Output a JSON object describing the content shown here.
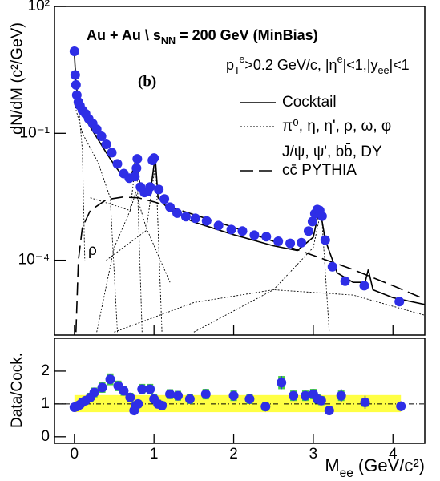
{
  "chart_data": [
    {
      "type": "scatter",
      "title_parts": [
        {
          "text": "Au + Au  \\ s"
        },
        {
          "text": "NN",
          "shift": "sub"
        },
        {
          "text": " = 200 GeV (MinBias)"
        }
      ],
      "subtitle_parts": [
        {
          "text": "p"
        },
        {
          "text": "T",
          "shift": "sub"
        },
        {
          "text": "e",
          "shift": "sup"
        },
        {
          "text": ">0.2 GeV/c, |η"
        },
        {
          "text": "e",
          "shift": "sup"
        },
        {
          "text": "|<1,|y"
        },
        {
          "text": "ee",
          "shift": "sub"
        },
        {
          "text": "|<1"
        }
      ],
      "ylabel": "dN/dM (c²/GeV)",
      "annotations": [
        "(b)",
        "ρ"
      ],
      "log_y": true,
      "xlim": [
        -0.25,
        4.4
      ],
      "ylim": [
        1.7e-06,
        100
      ],
      "yticks": [
        {
          "value": 100,
          "label": "10²"
        },
        {
          "value": 0.1,
          "label": "10⁻¹"
        },
        {
          "value": 0.0001,
          "label": "10⁻⁴"
        }
      ],
      "data": {
        "color": "#2e2ee6",
        "x": [
          0,
          0.01,
          0.02,
          0.03,
          0.05,
          0.07,
          0.1,
          0.14,
          0.18,
          0.23,
          0.28,
          0.34,
          0.4,
          0.47,
          0.54,
          0.62,
          0.69,
          0.76,
          0.78,
          0.79,
          0.83,
          0.88,
          0.92,
          0.95,
          0.98,
          1.0,
          1.06,
          1.13,
          1.2,
          1.29,
          1.4,
          1.52,
          1.66,
          1.81,
          1.97,
          2.11,
          2.26,
          2.41,
          2.56,
          2.71,
          2.85,
          2.94,
          2.99,
          3.02,
          3.05,
          3.08,
          3.11,
          3.15,
          3.24,
          3.4,
          3.64,
          4.08
        ],
        "values": [
          8.7,
          2.4,
          1.4,
          0.8,
          0.55,
          0.45,
          0.35,
          0.29,
          0.22,
          0.17,
          0.125,
          0.085,
          0.055,
          0.035,
          0.019,
          0.0112,
          0.0087,
          0.0095,
          0.015,
          0.025,
          0.0054,
          0.004,
          0.0042,
          0.0054,
          0.023,
          0.026,
          0.0047,
          0.0028,
          0.0018,
          0.0013,
          0.00107,
          0.00098,
          0.00085,
          0.00066,
          0.00053,
          0.00049,
          0.00039,
          0.00036,
          0.00028,
          0.00025,
          0.00026,
          0.00049,
          0.00082,
          0.00126,
          0.00158,
          0.0015,
          0.0011,
          0.0003,
          7e-05,
          3.2e-05,
          2.5e-05,
          1.05e-05
        ]
      },
      "series": [
        {
          "name": "Cocktail",
          "dash": "solid",
          "color": "#000000",
          "x": [
            0,
            0.02,
            0.05,
            0.1,
            0.15,
            0.2,
            0.3,
            0.4,
            0.5,
            0.6,
            0.7,
            0.76,
            0.78,
            0.8,
            0.85,
            0.95,
            1.0,
            1.02,
            1.05,
            1.2,
            1.5,
            2.0,
            2.5,
            2.8,
            3.0,
            3.08,
            3.15,
            3.3,
            3.5,
            3.65,
            3.69,
            3.75,
            4.0,
            4.4
          ],
          "values": [
            8,
            1.5,
            0.6,
            0.3,
            0.2,
            0.14,
            0.07,
            0.035,
            0.018,
            0.01,
            0.008,
            0.02,
            0.03,
            0.01,
            0.004,
            0.0035,
            0.018,
            0.02,
            0.003,
            0.0015,
            0.0008,
            0.0004,
            0.00022,
            0.00017,
            0.00035,
            0.0018,
            0.0003,
            5e-05,
            3e-05,
            3e-05,
            6e-05,
            2e-05,
            1.3e-05,
            9e-06
          ]
        },
        {
          "name": "cc̄ PYTHIA",
          "dash": "dashed",
          "color": "#000000",
          "x": [
            0.02,
            0.05,
            0.1,
            0.2,
            0.4,
            0.6,
            0.8,
            1.0,
            1.5,
            2.0,
            2.5,
            3.0,
            3.5,
            4.0,
            4.4
          ],
          "values": [
            2e-06,
            0.0001,
            0.0006,
            0.0015,
            0.0027,
            0.0031,
            0.003,
            0.0024,
            0.0012,
            0.0006,
            0.00028,
            0.00013,
            6e-05,
            2.5e-05,
            1.2e-05
          ]
        }
      ],
      "components_names": [
        "π⁰, η, η', ρ, ω, φ",
        "J/ψ, ψ', bb̄, DY"
      ],
      "components": [
        {
          "x": [
            0,
            0.05,
            0.1,
            0.13
          ],
          "values": [
            7,
            0.5,
            0.04,
            0.0001
          ]
        },
        {
          "x": [
            0,
            0.1,
            0.3,
            0.45,
            0.54
          ],
          "values": [
            0.5,
            0.1,
            0.02,
            0.003,
            2e-06
          ]
        },
        {
          "x": [
            0.2,
            0.5,
            0.7,
            0.78,
            0.85
          ],
          "values": [
            0.003,
            0.002,
            0.0015,
            0.03,
            2e-06
          ]
        },
        {
          "x": [
            0.28,
            0.5,
            0.7,
            0.77,
            0.9,
            1.2
          ],
          "values": [
            2e-06,
            0.0002,
            0.0015,
            0.004,
            0.0006,
            3e-05
          ]
        },
        {
          "x": [
            0.4,
            0.9,
            1.02,
            1.1
          ],
          "values": [
            0.0001,
            0.0005,
            0.02,
            2e-06
          ]
        },
        {
          "x": [
            1.5,
            2.5,
            3.0,
            3.1,
            3.2
          ],
          "values": [
            2e-06,
            2e-05,
            0.0002,
            0.0016,
            2e-06
          ]
        },
        {
          "x": [
            0.5,
            1.5,
            2.5,
            3.5,
            4.4
          ],
          "values": [
            2e-06,
            1e-05,
            2e-05,
            1.5e-05,
            5e-06
          ]
        }
      ]
    },
    {
      "type": "scatter",
      "ylabel": "Data/Cock.",
      "xlabel_parts": [
        {
          "text": "M"
        },
        {
          "text": "ee",
          "shift": "sub"
        },
        {
          "text": " (GeV/c²)"
        }
      ],
      "xlim": [
        -0.25,
        4.4
      ],
      "ylim": [
        -0.2,
        3.0
      ],
      "xticks": [
        0,
        1,
        2,
        3,
        4
      ],
      "yticks": [
        0,
        1,
        2
      ],
      "reference": 1,
      "band": {
        "x": [
          0,
          4.1
        ],
        "low": 0.75,
        "high": 1.27,
        "color": "#ffff44"
      },
      "data": {
        "color": "#2e2ee6",
        "sys_color": "#44cc44",
        "x": [
          0,
          0.03,
          0.05,
          0.07,
          0.1,
          0.14,
          0.2,
          0.25,
          0.35,
          0.45,
          0.55,
          0.62,
          0.7,
          0.75,
          0.77,
          0.8,
          0.85,
          0.95,
          1.0,
          1.05,
          1.1,
          1.2,
          1.3,
          1.45,
          1.65,
          2.0,
          2.2,
          2.4,
          2.6,
          2.75,
          2.9,
          3.0,
          3.05,
          3.1,
          3.2,
          3.35,
          3.65,
          4.1
        ],
        "values": [
          0.9,
          0.92,
          0.95,
          0.98,
          1.05,
          1.1,
          1.2,
          1.35,
          1.5,
          1.75,
          1.55,
          1.4,
          1.2,
          0.8,
          0.95,
          1.0,
          1.45,
          1.45,
          1.15,
          1.0,
          0.95,
          1.3,
          1.25,
          1.15,
          1.3,
          1.25,
          1.15,
          0.92,
          1.65,
          1.25,
          1.25,
          1.3,
          1.15,
          1.1,
          0.8,
          1.25,
          1.05,
          0.93
        ],
        "errors": [
          0.05,
          0.05,
          0.05,
          0.05,
          0.06,
          0.06,
          0.07,
          0.07,
          0.08,
          0.1,
          0.1,
          0.1,
          0.1,
          0.1,
          0.1,
          0.1,
          0.12,
          0.12,
          0.1,
          0.1,
          0.1,
          0.12,
          0.12,
          0.12,
          0.15,
          0.15,
          0.15,
          0.15,
          0.2,
          0.15,
          0.15,
          0.12,
          0.1,
          0.1,
          0.12,
          0.2,
          0.2,
          0.15
        ],
        "sys": [
          0.1,
          0.1,
          0.1,
          0.1,
          0.12,
          0.12,
          0.14,
          0.15,
          0.16,
          0.18,
          0.16,
          0.15,
          0.14,
          0.12,
          0.12,
          0.12,
          0.16,
          0.16,
          0.14,
          0.13,
          0.13,
          0.15,
          0.15,
          0.15,
          0.16,
          0.16,
          0.15,
          0.14,
          0.2,
          0.16,
          0.16,
          0.16,
          0.14,
          0.14,
          0.12,
          0.16,
          0.14,
          0.13
        ]
      }
    }
  ]
}
